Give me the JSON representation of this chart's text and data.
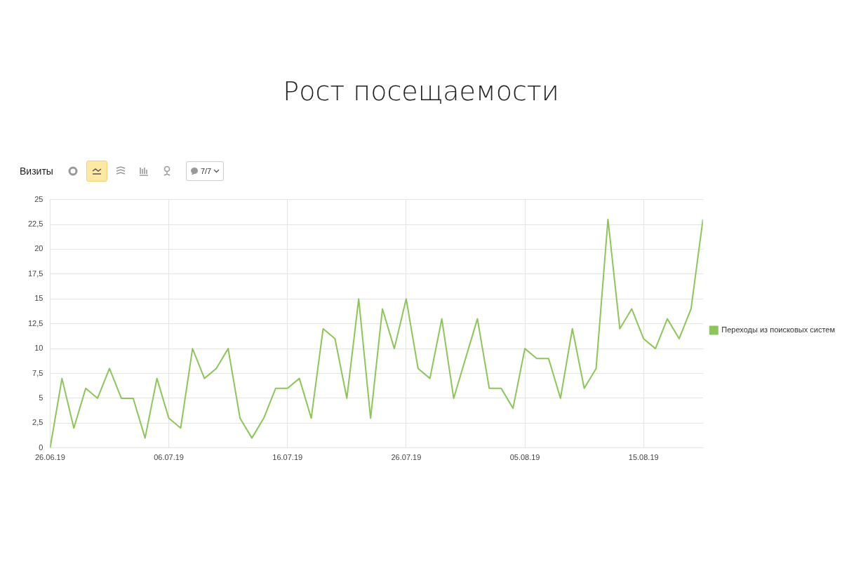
{
  "chart_data": {
    "type": "line",
    "title": "Рост посещаемости",
    "subtitle": "Визиты",
    "annotations": [
      "7/7"
    ],
    "x": [
      "--06-26",
      "--06-27",
      "--06-28",
      "--06-29",
      "--06-30",
      "--07-01",
      "--07-02",
      "--07-03",
      "--07-04",
      "--07-05",
      "--07-06",
      "--07-07",
      "--07-08",
      "--07-09",
      "--07-10",
      "--07-11",
      "--07-12",
      "--07-13",
      "--07-14",
      "--07-15",
      "--07-16",
      "--07-17",
      "--07-18",
      "--07-19",
      "--07-20",
      "--07-21",
      "--07-22",
      "--07-23",
      "--07-24",
      "--07-25",
      "--07-26",
      "--07-27",
      "--07-28",
      "--07-29",
      "--07-30",
      "--07-31",
      "--08-01",
      "--08-02",
      "--08-03",
      "--08-04",
      "--08-05",
      "--08-06",
      "--08-07",
      "--08-08",
      "--08-09",
      "--08-10",
      "--08-11",
      "--08-12",
      "--08-13",
      "--08-14",
      "--08-15",
      "--08-16",
      "--08-17",
      "--08-18",
      "--08-19",
      "--08-20"
    ],
    "series": [
      {
        "name": "Переходы из поисковых систем",
        "color": "#8cc657",
        "values": [
          0,
          7,
          2,
          6,
          5,
          8,
          5,
          5,
          1,
          7,
          3,
          2,
          10,
          7,
          8,
          10,
          3,
          1,
          3,
          6,
          6,
          7,
          3,
          12,
          11,
          5,
          15,
          3,
          14,
          10,
          15,
          8,
          7,
          13,
          5,
          9,
          13,
          6,
          6,
          4,
          10,
          9,
          9,
          5,
          12,
          6,
          8,
          23,
          12,
          14,
          11,
          10,
          13,
          11,
          14,
          23
        ]
      }
    ],
    "xlim": [
      "--06-26",
      "--08-20"
    ],
    "xticks": [
      {
        "value": "--06-26",
        "label": "26.06.19"
      },
      {
        "value": "--07-06",
        "label": "06.07.19"
      },
      {
        "value": "--07-16",
        "label": "16.07.19"
      },
      {
        "value": "--07-26",
        "label": "26.07.19"
      },
      {
        "value": "--08-05",
        "label": "05.08.19"
      },
      {
        "value": "--08-15",
        "label": "15.08.19"
      }
    ],
    "ylim": [
      0,
      25
    ],
    "yticks": [
      0,
      {
        "value": 2.5,
        "label": "2,5"
      },
      5,
      {
        "value": 7.5,
        "label": "7,5"
      },
      10,
      {
        "value": 12.5,
        "label": "12,5"
      },
      15,
      {
        "value": 17.5,
        "label": "17,5"
      },
      20,
      {
        "value": 22.5,
        "label": "22,5"
      },
      25
    ],
    "grid": true,
    "legend": "right",
    "marker": "none",
    "line_style": "solid"
  }
}
